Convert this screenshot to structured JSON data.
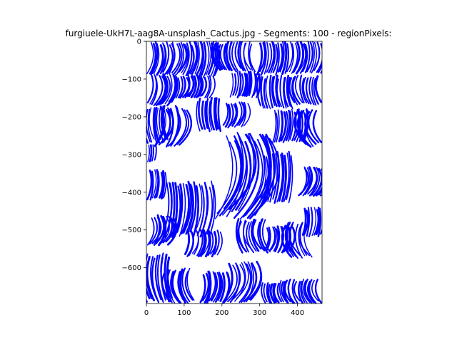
{
  "chart_data": {
    "type": "scatter",
    "title": "furgiuele-UkH7L-aag8A-unsplash_Cactus.jpg - Segments: 100 - regionPixels:",
    "xlabel": "",
    "ylabel": "",
    "xlim": [
      0,
      465
    ],
    "ylim": [
      -695,
      0
    ],
    "x_ticks": [
      0,
      100,
      200,
      300,
      400
    ],
    "y_ticks": [
      0,
      -100,
      -200,
      -300,
      -400,
      -500,
      -600
    ],
    "grid": false,
    "series_color": "#0000ff",
    "regions": [
      {
        "x": [
          0,
          95
        ],
        "y": [
          -90,
          0
        ]
      },
      {
        "x": [
          95,
          185
        ],
        "y": [
          -95,
          0
        ]
      },
      {
        "x": [
          185,
          290
        ],
        "y": [
          -80,
          0
        ]
      },
      {
        "x": [
          290,
          370
        ],
        "y": [
          -90,
          0
        ]
      },
      {
        "x": [
          370,
          465
        ],
        "y": [
          -85,
          0
        ]
      },
      {
        "x": [
          0,
          70
        ],
        "y": [
          -170,
          -85
        ]
      },
      {
        "x": [
          70,
          170
        ],
        "y": [
          -150,
          -90
        ]
      },
      {
        "x": [
          220,
          300
        ],
        "y": [
          -150,
          -80
        ]
      },
      {
        "x": [
          300,
          390
        ],
        "y": [
          -180,
          -90
        ]
      },
      {
        "x": [
          390,
          465
        ],
        "y": [
          -170,
          -90
        ]
      },
      {
        "x": [
          0,
          60
        ],
        "y": [
          -270,
          -170
        ]
      },
      {
        "x": [
          20,
          90
        ],
        "y": [
          -280,
          -170
        ]
      },
      {
        "x": [
          140,
          200
        ],
        "y": [
          -240,
          -150
        ]
      },
      {
        "x": [
          200,
          260
        ],
        "y": [
          -230,
          -160
        ]
      },
      {
        "x": [
          330,
          420
        ],
        "y": [
          -270,
          -180
        ]
      },
      {
        "x": [
          420,
          465
        ],
        "y": [
          -280,
          -175
        ]
      },
      {
        "x": [
          0,
          25
        ],
        "y": [
          -320,
          -270
        ]
      },
      {
        "x": [
          180,
          290
        ],
        "y": [
          -470,
          -240
        ]
      },
      {
        "x": [
          300,
          380
        ],
        "y": [
          -430,
          -290
        ]
      },
      {
        "x": [
          400,
          465
        ],
        "y": [
          -410,
          -330
        ]
      },
      {
        "x": [
          0,
          50
        ],
        "y": [
          -420,
          -340
        ]
      },
      {
        "x": [
          40,
          170
        ],
        "y": [
          -520,
          -370
        ]
      },
      {
        "x": [
          0,
          60
        ],
        "y": [
          -540,
          -460
        ]
      },
      {
        "x": [
          410,
          465
        ],
        "y": [
          -520,
          -440
        ]
      },
      {
        "x": [
          250,
          330
        ],
        "y": [
          -560,
          -470
        ]
      },
      {
        "x": [
          310,
          380
        ],
        "y": [
          -560,
          -490
        ]
      },
      {
        "x": [
          380,
          440
        ],
        "y": [
          -575,
          -480
        ]
      },
      {
        "x": [
          100,
          190
        ],
        "y": [
          -570,
          -500
        ]
      },
      {
        "x": [
          0,
          70
        ],
        "y": [
          -695,
          -560
        ]
      },
      {
        "x": [
          60,
          130
        ],
        "y": [
          -695,
          -600
        ]
      },
      {
        "x": [
          140,
          210
        ],
        "y": [
          -695,
          -610
        ]
      },
      {
        "x": [
          200,
          280
        ],
        "y": [
          -695,
          -580
        ]
      },
      {
        "x": [
          310,
          360
        ],
        "y": [
          -695,
          -640
        ]
      },
      {
        "x": [
          360,
          465
        ],
        "y": [
          -695,
          -630
        ]
      }
    ]
  }
}
